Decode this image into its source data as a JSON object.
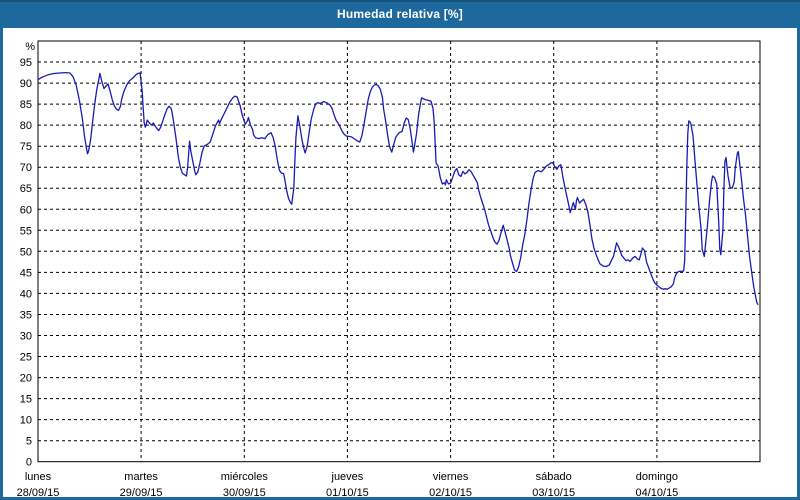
{
  "window": {
    "title": "Humedad relativa [%]"
  },
  "colors": {
    "titlebar_bg": "#1d689d",
    "titlebar_top_edge": "#15527c",
    "titlebar_text": "#ffffff",
    "frame_border": "#1d689d",
    "plot_bg": "#ffffff",
    "grid": "#000000",
    "axis": "#000000",
    "labels": "#000000",
    "line": "#1a1ab8"
  },
  "chart_data": {
    "type": "line",
    "title": "Humedad relativa [%]",
    "ylabel": "%",
    "ylim": [
      0,
      100
    ],
    "y_ticks": [
      0,
      5,
      10,
      15,
      20,
      25,
      30,
      35,
      40,
      45,
      50,
      55,
      60,
      65,
      70,
      75,
      80,
      85,
      90,
      95
    ],
    "grid": "dashed",
    "legend": "none",
    "x_unit": "days since Monday 00:00",
    "days": [
      {
        "name": "lunes",
        "date": "28/09/15"
      },
      {
        "name": "martes",
        "date": "29/09/15"
      },
      {
        "name": "miércoles",
        "date": "30/09/15"
      },
      {
        "name": "jueves",
        "date": "01/10/15"
      },
      {
        "name": "viernes",
        "date": "02/10/15"
      },
      {
        "name": "sábado",
        "date": "03/10/15"
      },
      {
        "name": "domingo",
        "date": "04/10/15"
      }
    ],
    "points": [
      [
        0.0,
        90.8
      ],
      [
        0.04,
        91.4
      ],
      [
        0.1,
        92.0
      ],
      [
        0.16,
        92.3
      ],
      [
        0.21,
        92.4
      ],
      [
        0.27,
        92.5
      ],
      [
        0.31,
        92.4
      ],
      [
        0.34,
        91.5
      ],
      [
        0.37,
        89.5
      ],
      [
        0.4,
        86.0
      ],
      [
        0.43,
        81.5
      ],
      [
        0.45,
        77.5
      ],
      [
        0.47,
        74.5
      ],
      [
        0.48,
        73.2
      ],
      [
        0.49,
        73.8
      ],
      [
        0.51,
        76.5
      ],
      [
        0.53,
        81.0
      ],
      [
        0.55,
        85.0
      ],
      [
        0.57,
        88.5
      ],
      [
        0.59,
        91.0
      ],
      [
        0.6,
        92.3
      ],
      [
        0.62,
        90.3
      ],
      [
        0.64,
        88.7
      ],
      [
        0.66,
        89.3
      ],
      [
        0.68,
        89.8
      ],
      [
        0.7,
        88.0
      ],
      [
        0.72,
        86.0
      ],
      [
        0.74,
        84.6
      ],
      [
        0.76,
        83.8
      ],
      [
        0.78,
        83.5
      ],
      [
        0.8,
        84.5
      ],
      [
        0.81,
        86.0
      ],
      [
        0.83,
        87.8
      ],
      [
        0.85,
        89.0
      ],
      [
        0.87,
        90.0
      ],
      [
        0.89,
        90.6
      ],
      [
        0.92,
        91.2
      ],
      [
        0.95,
        92.0
      ],
      [
        0.97,
        92.3
      ],
      [
        0.99,
        92.4
      ],
      [
        1.01,
        88.0
      ],
      [
        1.02,
        84.0
      ],
      [
        1.03,
        80.5
      ],
      [
        1.04,
        79.5
      ],
      [
        1.05,
        80.3
      ],
      [
        1.06,
        81.2
      ],
      [
        1.08,
        80.5
      ],
      [
        1.1,
        80.0
      ],
      [
        1.12,
        80.5
      ],
      [
        1.13,
        80.0
      ],
      [
        1.15,
        79.3
      ],
      [
        1.17,
        78.7
      ],
      [
        1.19,
        79.5
      ],
      [
        1.21,
        81.0
      ],
      [
        1.23,
        82.5
      ],
      [
        1.25,
        83.8
      ],
      [
        1.27,
        84.5
      ],
      [
        1.29,
        84.0
      ],
      [
        1.3,
        83.0
      ],
      [
        1.32,
        80.0
      ],
      [
        1.34,
        76.5
      ],
      [
        1.36,
        72.5
      ],
      [
        1.38,
        70.0
      ],
      [
        1.4,
        68.6
      ],
      [
        1.42,
        68.2
      ],
      [
        1.44,
        67.9
      ],
      [
        1.45,
        70.0
      ],
      [
        1.46,
        73.0
      ],
      [
        1.47,
        76.2
      ],
      [
        1.48,
        74.0
      ],
      [
        1.5,
        71.5
      ],
      [
        1.52,
        69.0
      ],
      [
        1.53,
        68.2
      ],
      [
        1.55,
        68.9
      ],
      [
        1.57,
        71.0
      ],
      [
        1.59,
        73.5
      ],
      [
        1.61,
        75.0
      ],
      [
        1.64,
        75.4
      ],
      [
        1.67,
        76.0
      ],
      [
        1.69,
        77.5
      ],
      [
        1.72,
        79.8
      ],
      [
        1.75,
        81.2
      ],
      [
        1.76,
        80.4
      ],
      [
        1.78,
        81.5
      ],
      [
        1.81,
        83.0
      ],
      [
        1.84,
        84.5
      ],
      [
        1.86,
        85.5
      ],
      [
        1.89,
        86.5
      ],
      [
        1.91,
        86.9
      ],
      [
        1.93,
        86.7
      ],
      [
        1.96,
        84.6
      ],
      [
        1.98,
        82.4
      ],
      [
        2.01,
        80.2
      ],
      [
        2.03,
        81.0
      ],
      [
        2.04,
        81.8
      ],
      [
        2.06,
        80.0
      ],
      [
        2.08,
        79.0
      ],
      [
        2.09,
        77.7
      ],
      [
        2.11,
        77.0
      ],
      [
        2.14,
        76.8
      ],
      [
        2.17,
        77.0
      ],
      [
        2.2,
        76.8
      ],
      [
        2.23,
        77.8
      ],
      [
        2.26,
        78.2
      ],
      [
        2.28,
        77.0
      ],
      [
        2.3,
        75.0
      ],
      [
        2.32,
        71.8
      ],
      [
        2.34,
        69.3
      ],
      [
        2.36,
        68.6
      ],
      [
        2.38,
        68.5
      ],
      [
        2.39,
        67.5
      ],
      [
        2.41,
        64.5
      ],
      [
        2.43,
        62.5
      ],
      [
        2.45,
        61.5
      ],
      [
        2.46,
        61.2
      ],
      [
        2.48,
        65.0
      ],
      [
        2.49,
        71.0
      ],
      [
        2.5,
        77.0
      ],
      [
        2.52,
        82.2
      ],
      [
        2.54,
        79.5
      ],
      [
        2.56,
        76.5
      ],
      [
        2.58,
        74.2
      ],
      [
        2.59,
        73.4
      ],
      [
        2.61,
        75.0
      ],
      [
        2.63,
        78.5
      ],
      [
        2.65,
        81.5
      ],
      [
        2.67,
        83.5
      ],
      [
        2.69,
        85.0
      ],
      [
        2.71,
        85.3
      ],
      [
        2.74,
        85.2
      ],
      [
        2.77,
        85.6
      ],
      [
        2.8,
        85.3
      ],
      [
        2.83,
        84.8
      ],
      [
        2.85,
        84.0
      ],
      [
        2.87,
        82.5
      ],
      [
        2.89,
        81.2
      ],
      [
        2.91,
        80.5
      ],
      [
        2.93,
        79.5
      ],
      [
        2.95,
        78.5
      ],
      [
        2.97,
        77.8
      ],
      [
        2.99,
        77.4
      ],
      [
        3.02,
        77.3
      ],
      [
        3.04,
        77.2
      ],
      [
        3.07,
        76.7
      ],
      [
        3.1,
        76.2
      ],
      [
        3.12,
        76.0
      ],
      [
        3.14,
        77.5
      ],
      [
        3.16,
        80.0
      ],
      [
        3.18,
        83.0
      ],
      [
        3.2,
        86.0
      ],
      [
        3.22,
        87.8
      ],
      [
        3.24,
        89.0
      ],
      [
        3.26,
        89.5
      ],
      [
        3.28,
        89.7
      ],
      [
        3.3,
        89.3
      ],
      [
        3.32,
        88.5
      ],
      [
        3.34,
        86.5
      ],
      [
        3.35,
        84.0
      ],
      [
        3.37,
        81.0
      ],
      [
        3.39,
        77.5
      ],
      [
        3.41,
        74.8
      ],
      [
        3.43,
        73.6
      ],
      [
        3.45,
        75.5
      ],
      [
        3.47,
        77.2
      ],
      [
        3.5,
        78.2
      ],
      [
        3.53,
        78.5
      ],
      [
        3.55,
        80.5
      ],
      [
        3.57,
        81.7
      ],
      [
        3.59,
        81.3
      ],
      [
        3.61,
        79.0
      ],
      [
        3.63,
        75.5
      ],
      [
        3.64,
        73.6
      ],
      [
        3.65,
        75.0
      ],
      [
        3.67,
        78.0
      ],
      [
        3.69,
        82.5
      ],
      [
        3.71,
        85.5
      ],
      [
        3.72,
        86.5
      ],
      [
        3.75,
        86.1
      ],
      [
        3.78,
        85.9
      ],
      [
        3.81,
        85.7
      ],
      [
        3.83,
        84.0
      ],
      [
        3.84,
        81.0
      ],
      [
        3.86,
        71.0
      ],
      [
        3.88,
        70.2
      ],
      [
        3.9,
        67.5
      ],
      [
        3.92,
        66.0
      ],
      [
        3.94,
        66.3
      ],
      [
        3.95,
        65.8
      ],
      [
        3.96,
        67.0
      ],
      [
        3.98,
        66.0
      ],
      [
        4.0,
        66.2
      ],
      [
        4.02,
        67.5
      ],
      [
        4.04,
        69.0
      ],
      [
        4.06,
        69.7
      ],
      [
        4.08,
        68.2
      ],
      [
        4.1,
        67.8
      ],
      [
        4.12,
        69.0
      ],
      [
        4.14,
        68.4
      ],
      [
        4.16,
        68.8
      ],
      [
        4.18,
        69.4
      ],
      [
        4.2,
        68.9
      ],
      [
        4.22,
        68.0
      ],
      [
        4.24,
        67.2
      ],
      [
        4.26,
        66.3
      ],
      [
        4.27,
        64.8
      ],
      [
        4.29,
        63.0
      ],
      [
        4.31,
        61.5
      ],
      [
        4.33,
        60.0
      ],
      [
        4.35,
        58.0
      ],
      [
        4.37,
        56.2
      ],
      [
        4.39,
        54.8
      ],
      [
        4.41,
        53.3
      ],
      [
        4.43,
        52.2
      ],
      [
        4.45,
        51.7
      ],
      [
        4.47,
        52.6
      ],
      [
        4.49,
        54.5
      ],
      [
        4.51,
        56.2
      ],
      [
        4.53,
        54.5
      ],
      [
        4.55,
        52.5
      ],
      [
        4.57,
        50.5
      ],
      [
        4.58,
        49.0
      ],
      [
        4.6,
        47.2
      ],
      [
        4.62,
        45.6
      ],
      [
        4.64,
        45.2
      ],
      [
        4.66,
        46.3
      ],
      [
        4.68,
        48.5
      ],
      [
        4.7,
        51.7
      ],
      [
        4.72,
        54.0
      ],
      [
        4.74,
        57.5
      ],
      [
        4.76,
        61.5
      ],
      [
        4.78,
        64.5
      ],
      [
        4.8,
        67.3
      ],
      [
        4.82,
        68.8
      ],
      [
        4.85,
        69.2
      ],
      [
        4.88,
        68.9
      ],
      [
        4.9,
        69.4
      ],
      [
        4.93,
        70.3
      ],
      [
        4.95,
        70.6
      ],
      [
        4.97,
        71.0
      ],
      [
        4.99,
        71.1
      ],
      [
        5.01,
        70.2
      ],
      [
        5.03,
        69.5
      ],
      [
        5.05,
        70.3
      ],
      [
        5.07,
        70.6
      ],
      [
        5.09,
        67.5
      ],
      [
        5.11,
        65.0
      ],
      [
        5.13,
        62.8
      ],
      [
        5.15,
        60.5
      ],
      [
        5.16,
        59.2
      ],
      [
        5.18,
        60.8
      ],
      [
        5.19,
        61.6
      ],
      [
        5.21,
        60.0
      ],
      [
        5.22,
        62.0
      ],
      [
        5.23,
        62.8
      ],
      [
        5.25,
        61.5
      ],
      [
        5.27,
        62.0
      ],
      [
        5.29,
        62.4
      ],
      [
        5.31,
        61.2
      ],
      [
        5.33,
        59.5
      ],
      [
        5.35,
        56.5
      ],
      [
        5.37,
        53.0
      ],
      [
        5.39,
        50.8
      ],
      [
        5.41,
        49.3
      ],
      [
        5.43,
        48.0
      ],
      [
        5.45,
        47.0
      ],
      [
        5.48,
        46.5
      ],
      [
        5.51,
        46.4
      ],
      [
        5.54,
        46.8
      ],
      [
        5.56,
        47.9
      ],
      [
        5.58,
        48.8
      ],
      [
        5.6,
        51.0
      ],
      [
        5.61,
        52.0
      ],
      [
        5.63,
        51.0
      ],
      [
        5.66,
        49.0
      ],
      [
        5.68,
        48.4
      ],
      [
        5.7,
        47.8
      ],
      [
        5.72,
        48.0
      ],
      [
        5.74,
        47.6
      ],
      [
        5.77,
        48.5
      ],
      [
        5.79,
        48.8
      ],
      [
        5.81,
        48.2
      ],
      [
        5.83,
        48.0
      ],
      [
        5.85,
        49.8
      ],
      [
        5.86,
        50.8
      ],
      [
        5.88,
        50.2
      ],
      [
        5.9,
        47.5
      ],
      [
        5.93,
        45.5
      ],
      [
        5.96,
        43.5
      ],
      [
        5.98,
        42.5
      ],
      [
        6.0,
        42.0
      ],
      [
        6.02,
        41.6
      ],
      [
        6.04,
        41.2
      ],
      [
        6.06,
        41.0
      ],
      [
        6.08,
        41.1
      ],
      [
        6.1,
        41.0
      ],
      [
        6.12,
        41.3
      ],
      [
        6.14,
        41.6
      ],
      [
        6.16,
        42.3
      ],
      [
        6.17,
        43.5
      ],
      [
        6.19,
        44.8
      ],
      [
        6.21,
        45.2
      ],
      [
        6.23,
        45.3
      ],
      [
        6.25,
        45.2
      ],
      [
        6.26,
        45.4
      ],
      [
        6.27,
        48.0
      ],
      [
        6.28,
        58.0
      ],
      [
        6.29,
        70.0
      ],
      [
        6.3,
        78.0
      ],
      [
        6.31,
        81.0
      ],
      [
        6.32,
        80.8
      ],
      [
        6.33,
        80.3
      ],
      [
        6.35,
        77.5
      ],
      [
        6.37,
        71.5
      ],
      [
        6.39,
        65.5
      ],
      [
        6.41,
        60.0
      ],
      [
        6.43,
        55.0
      ],
      [
        6.44,
        50.5
      ],
      [
        6.46,
        48.8
      ],
      [
        6.47,
        51.0
      ],
      [
        6.49,
        56.0
      ],
      [
        6.51,
        62.0
      ],
      [
        6.53,
        66.5
      ],
      [
        6.54,
        67.9
      ],
      [
        6.56,
        67.5
      ],
      [
        6.58,
        66.0
      ],
      [
        6.6,
        57.0
      ],
      [
        6.61,
        50.5
      ],
      [
        6.62,
        49.2
      ],
      [
        6.64,
        55.0
      ],
      [
        6.65,
        65.0
      ],
      [
        6.66,
        71.3
      ],
      [
        6.67,
        72.3
      ],
      [
        6.69,
        68.0
      ],
      [
        6.71,
        65.2
      ],
      [
        6.73,
        65.0
      ],
      [
        6.75,
        66.5
      ],
      [
        6.76,
        69.7
      ],
      [
        6.78,
        73.3
      ],
      [
        6.79,
        73.7
      ],
      [
        6.8,
        71.5
      ],
      [
        6.82,
        67.3
      ],
      [
        6.84,
        62.5
      ],
      [
        6.86,
        58.5
      ],
      [
        6.88,
        53.5
      ],
      [
        6.9,
        48.5
      ],
      [
        6.92,
        45.0
      ],
      [
        6.94,
        41.5
      ],
      [
        6.96,
        38.9
      ],
      [
        6.97,
        37.8
      ],
      [
        6.98,
        37.4
      ]
    ]
  }
}
